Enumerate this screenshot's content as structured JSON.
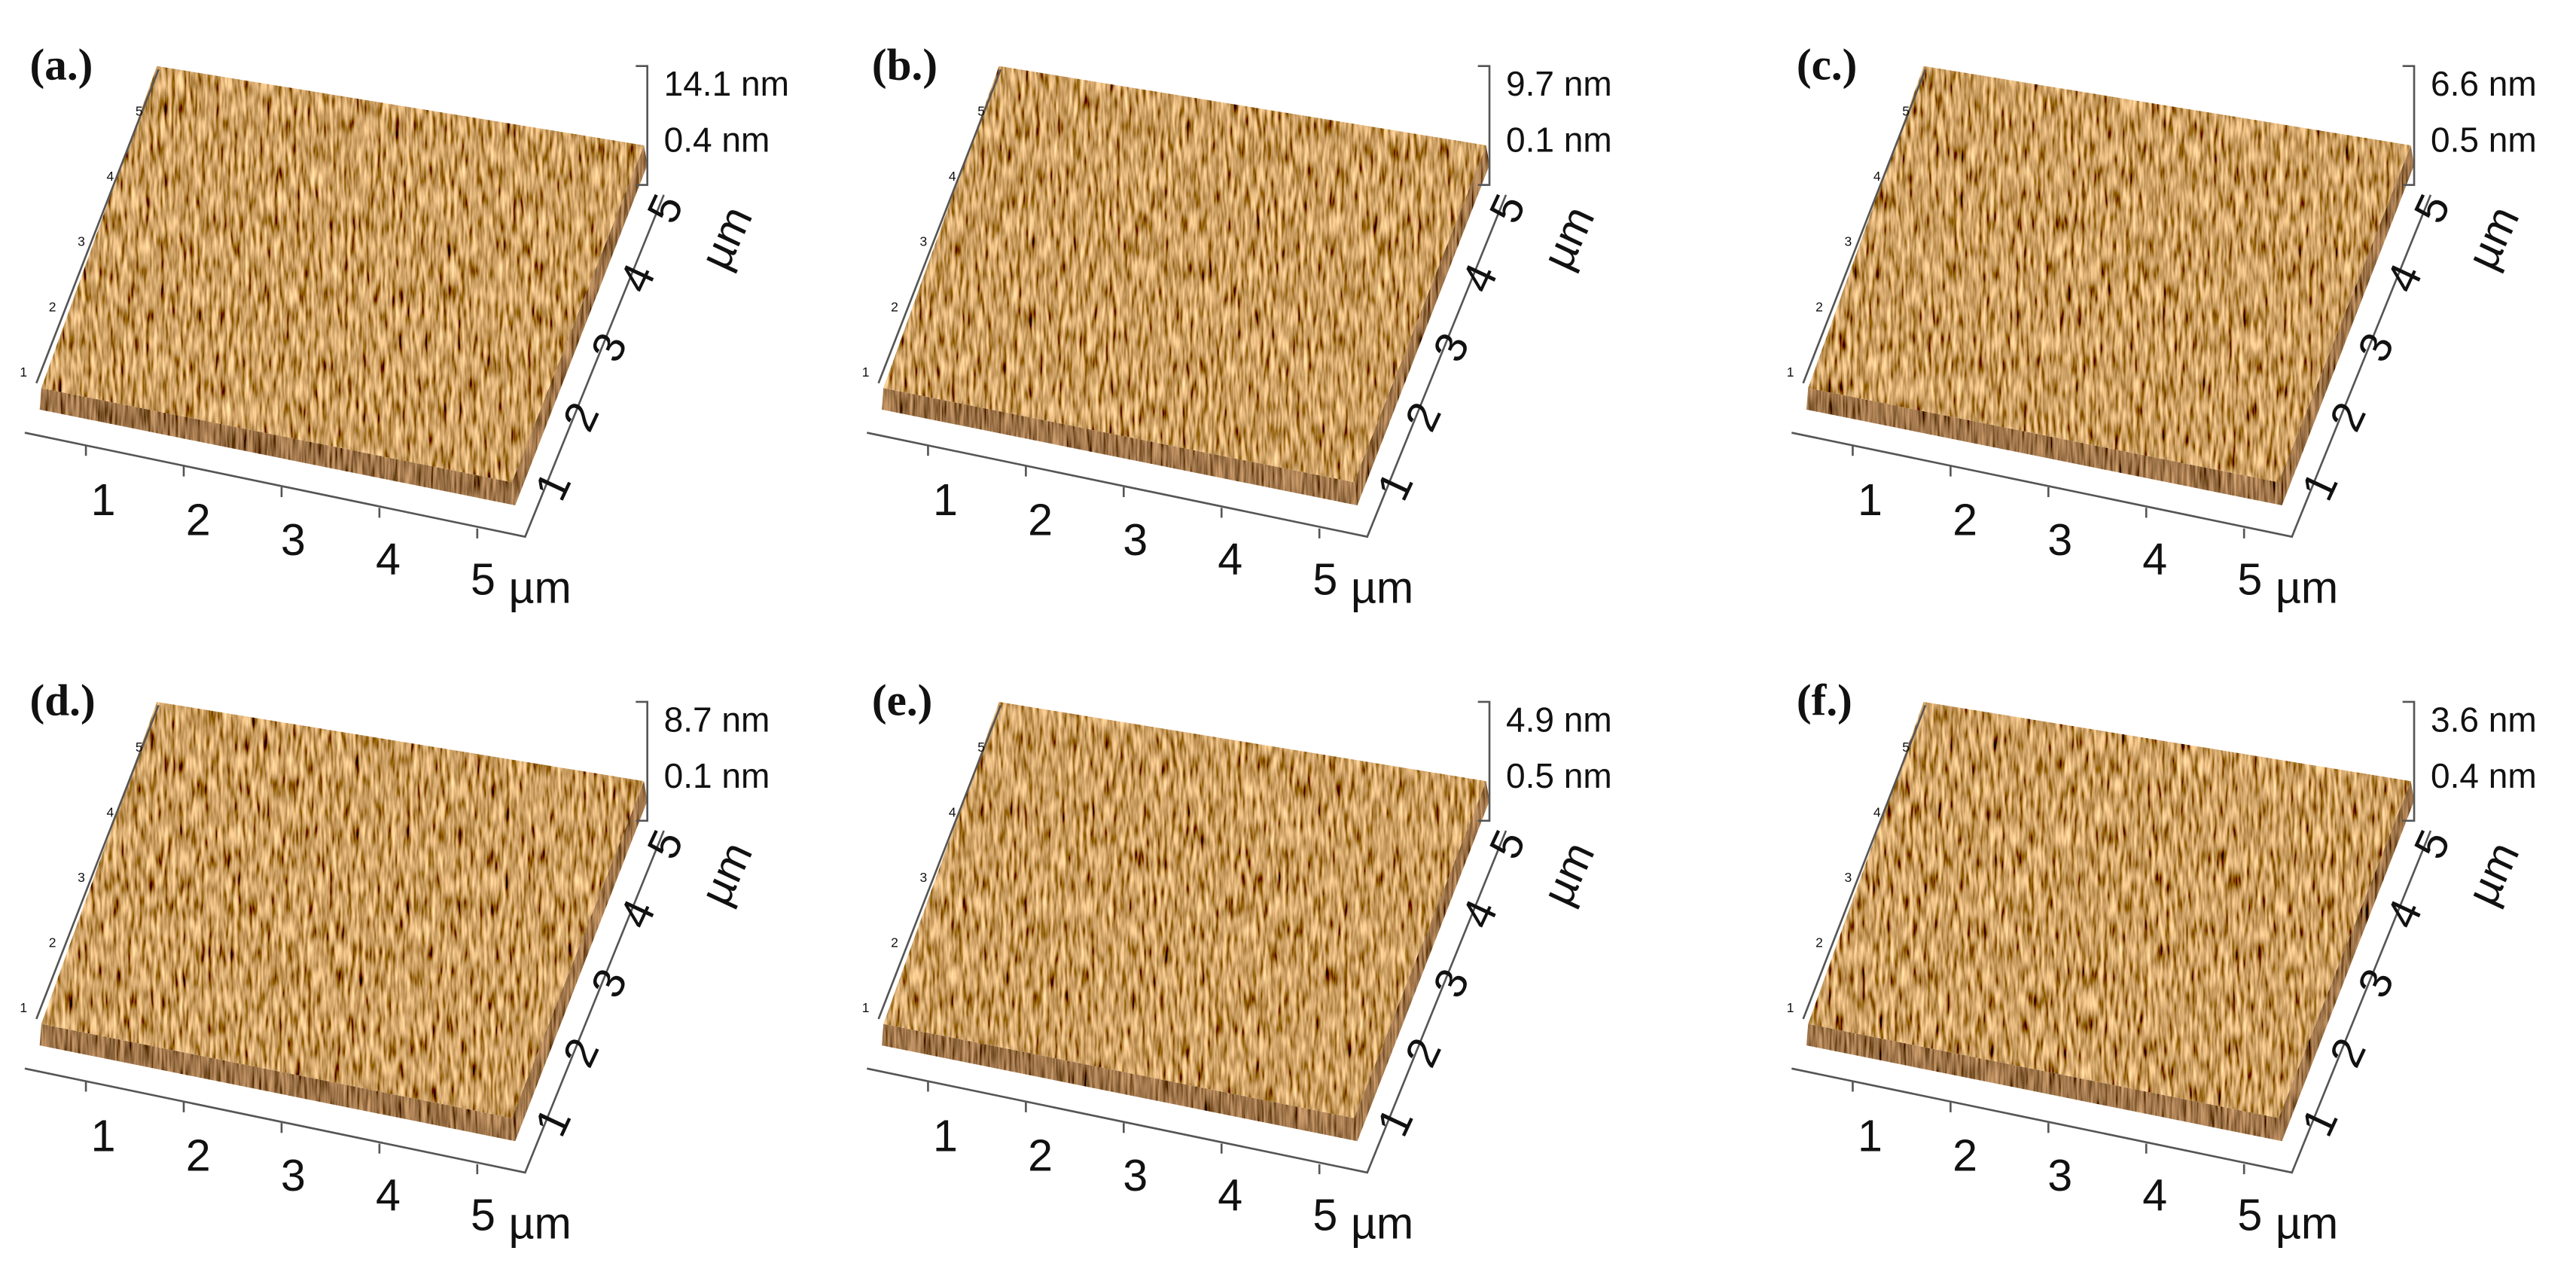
{
  "panels": [
    {
      "label": "(a.)",
      "z_max": "14.1 nm",
      "z_min": "0.4 nm",
      "x_ticks": [
        1,
        2,
        3,
        4,
        5
      ],
      "x_unit": "µm",
      "y_ticks": [
        1,
        2,
        3,
        4,
        5
      ],
      "y_unit": "µm",
      "z_ticks": [
        1,
        2,
        3,
        4,
        5
      ]
    },
    {
      "label": "(b.)",
      "z_max": "9.7 nm",
      "z_min": "0.1 nm",
      "x_ticks": [
        1,
        2,
        3,
        4,
        5
      ],
      "x_unit": "µm",
      "y_ticks": [
        1,
        2,
        3,
        4,
        5
      ],
      "y_unit": "µm",
      "z_ticks": [
        1,
        2,
        3,
        4,
        5
      ]
    },
    {
      "label": "(c.)",
      "z_max": "6.6 nm",
      "z_min": "0.5 nm",
      "x_ticks": [
        1,
        2,
        3,
        4,
        5
      ],
      "x_unit": "µm",
      "y_ticks": [
        1,
        2,
        3,
        4,
        5
      ],
      "y_unit": "µm",
      "z_ticks": [
        1,
        2,
        3,
        4,
        5
      ]
    },
    {
      "label": "(d.)",
      "z_max": "8.7 nm",
      "z_min": "0.1 nm",
      "x_ticks": [
        1,
        2,
        3,
        4,
        5
      ],
      "x_unit": "µm",
      "y_ticks": [
        1,
        2,
        3,
        4,
        5
      ],
      "y_unit": "µm",
      "z_ticks": [
        1,
        2,
        3,
        4,
        5
      ]
    },
    {
      "label": "(e.)",
      "z_max": "4.9 nm",
      "z_min": "0.5 nm",
      "x_ticks": [
        1,
        2,
        3,
        4,
        5
      ],
      "x_unit": "µm",
      "y_ticks": [
        1,
        2,
        3,
        4,
        5
      ],
      "y_unit": "µm",
      "z_ticks": [
        1,
        2,
        3,
        4,
        5
      ]
    },
    {
      "label": "(f.)",
      "z_max": "3.6 nm",
      "z_min": "0.4 nm",
      "x_ticks": [
        1,
        2,
        3,
        4,
        5
      ],
      "x_unit": "µm",
      "y_ticks": [
        1,
        2,
        3,
        4,
        5
      ],
      "y_unit": "µm",
      "z_ticks": [
        1,
        2,
        3,
        4,
        5
      ]
    }
  ]
}
